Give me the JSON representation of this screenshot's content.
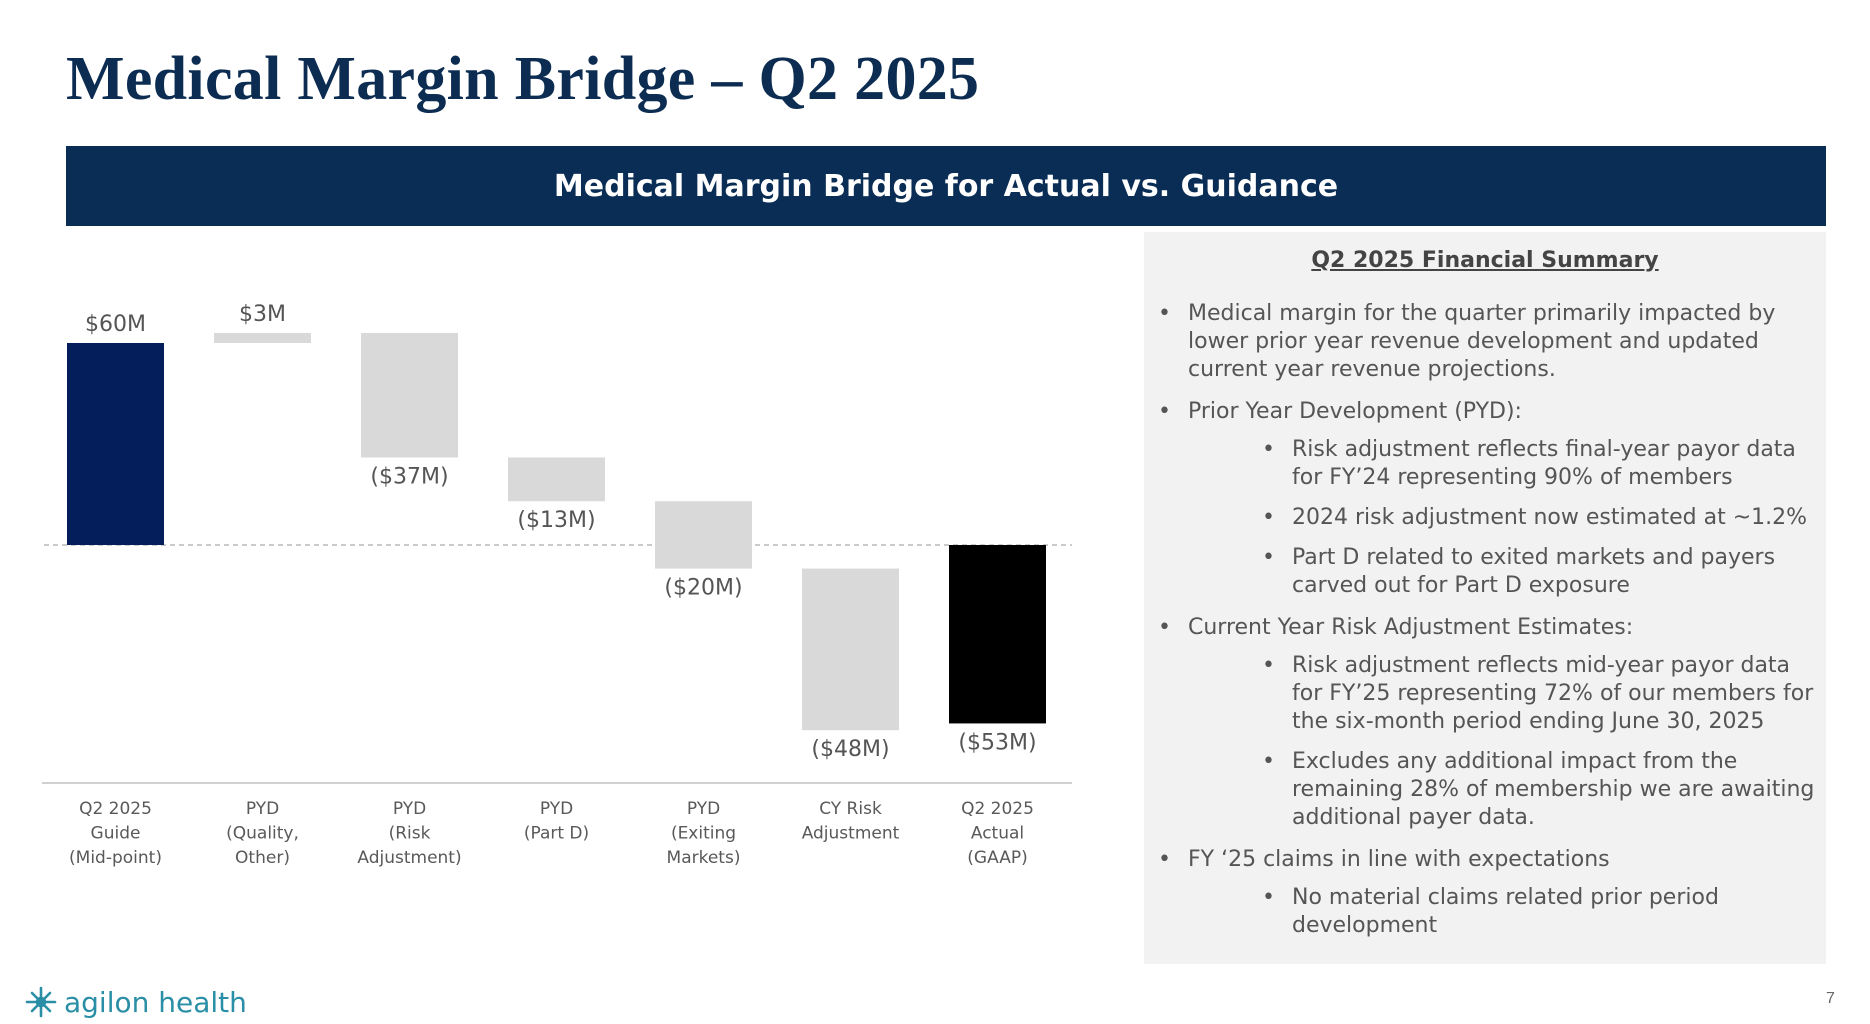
{
  "page": {
    "title": "Medical Margin Bridge – Q2 2025",
    "banner": "Medical Margin Bridge for Actual vs. Guidance",
    "page_number": "7",
    "logo_text": "agilon health"
  },
  "colors": {
    "title": "#0c2c52",
    "banner_bg": "#0a2d55",
    "start_bar": "#041e5c",
    "step_bar": "#d9d9d9",
    "end_bar": "#000000",
    "logo": "#2a8fa6"
  },
  "chart_data": {
    "type": "bar",
    "subtype": "waterfall",
    "title": "",
    "xlabel": "",
    "ylabel": "",
    "categories": [
      [
        "Q2 2025",
        "Guide",
        "(Mid-point)"
      ],
      [
        "PYD",
        "(Quality,",
        "Other)"
      ],
      [
        "PYD",
        "(Risk",
        "Adjustment)"
      ],
      [
        "PYD",
        "(Part D)"
      ],
      [
        "PYD",
        "(Exiting",
        "Markets)"
      ],
      [
        "CY Risk",
        "Adjustment"
      ],
      [
        "Q2 2025",
        "Actual",
        "(GAAP)"
      ]
    ],
    "values": [
      60,
      3,
      -37,
      -13,
      -20,
      -48,
      -53
    ],
    "bar_roles": [
      "total",
      "change",
      "change",
      "change",
      "change",
      "change",
      "total"
    ],
    "data_labels": [
      "$60M",
      "$3M",
      "($37M)",
      "($13M)",
      "($20M)",
      "($48M)",
      "($53M)"
    ],
    "units": "$M",
    "grid": false,
    "legend": "none",
    "baseline_dashed": true
  },
  "summary": {
    "heading": "Q2 2025 Financial Summary",
    "items": [
      {
        "text": "Medical margin for the quarter primarily impacted by lower prior year revenue development and updated current year revenue projections.",
        "sub": []
      },
      {
        "text": "Prior Year Development (PYD):",
        "sub": [
          "Risk adjustment reflects final-year payor data for FY’24 representing 90% of members",
          "2024 risk adjustment now estimated at ~1.2%",
          "Part D related to exited markets and payers carved out for Part D exposure"
        ]
      },
      {
        "text": "Current Year Risk Adjustment Estimates:",
        "sub": [
          "Risk adjustment reflects mid-year payor data for FY’25 representing 72% of our members for the six-month period ending June 30, 2025",
          "Excludes any additional impact from the remaining 28% of membership we are awaiting additional payer data."
        ]
      },
      {
        "text": "FY ‘25 claims in line with expectations",
        "sub": [
          "No material claims related prior period development"
        ]
      }
    ]
  }
}
